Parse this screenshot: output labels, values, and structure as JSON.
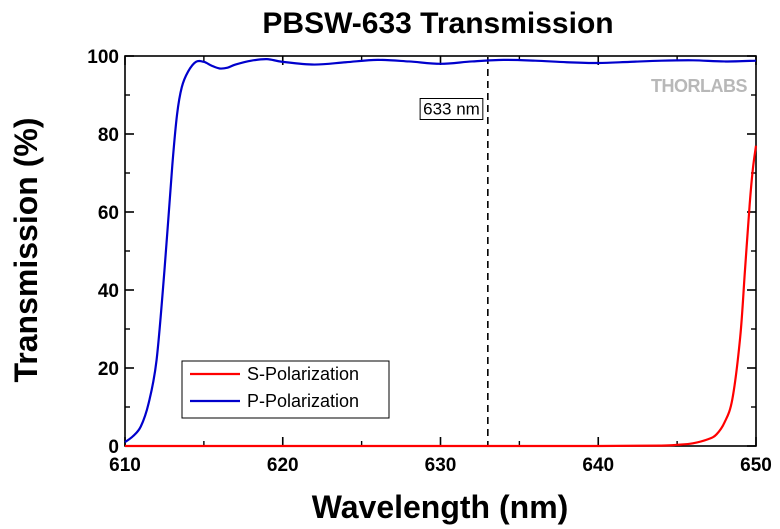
{
  "chart_data": {
    "type": "line",
    "title": "PBSW-633 Transmission",
    "xlabel": "Wavelength (nm)",
    "ylabel": "Transmission (%)",
    "xlim": [
      610,
      650
    ],
    "ylim": [
      0,
      100
    ],
    "x_ticks": [
      610,
      620,
      630,
      640,
      650
    ],
    "y_ticks": [
      0,
      20,
      40,
      60,
      80,
      100
    ],
    "grid": false,
    "legend_position": "bottom-left",
    "series": [
      {
        "name": "S-Polarization",
        "color": "#ff0000",
        "x": [
          610,
          620,
          630,
          640,
          644,
          645,
          646,
          647,
          647.5,
          648,
          648.5,
          649,
          649.3,
          649.6,
          649.8,
          650
        ],
        "y": [
          0,
          0,
          0,
          0,
          0.1,
          0.3,
          0.7,
          1.8,
          3,
          6,
          12,
          28,
          45,
          62,
          71,
          77
        ]
      },
      {
        "name": "P-Polarization",
        "color": "#0000cc",
        "x": [
          610,
          610.5,
          611,
          611.5,
          612,
          612.5,
          613,
          613.3,
          613.6,
          614,
          614.5,
          615,
          615.5,
          616,
          616.5,
          617,
          618,
          619,
          620,
          622,
          624,
          626,
          628,
          630,
          632,
          634,
          636,
          638,
          640,
          642,
          644,
          646,
          648,
          650
        ],
        "y": [
          1,
          2.5,
          5,
          11,
          22,
          45,
          72,
          85,
          92,
          96,
          98.5,
          98.5,
          97.5,
          96.8,
          97,
          97.8,
          98.8,
          99.2,
          98.5,
          97.8,
          98.4,
          99,
          98.6,
          98,
          98.6,
          99,
          98.8,
          98.4,
          98.2,
          98.5,
          98.8,
          98.9,
          98.6,
          98.8
        ]
      }
    ],
    "annotations": [
      {
        "text": "633 nm",
        "x": 633,
        "style": "dashed-vertical-line"
      }
    ],
    "watermark": "THORLABS"
  }
}
